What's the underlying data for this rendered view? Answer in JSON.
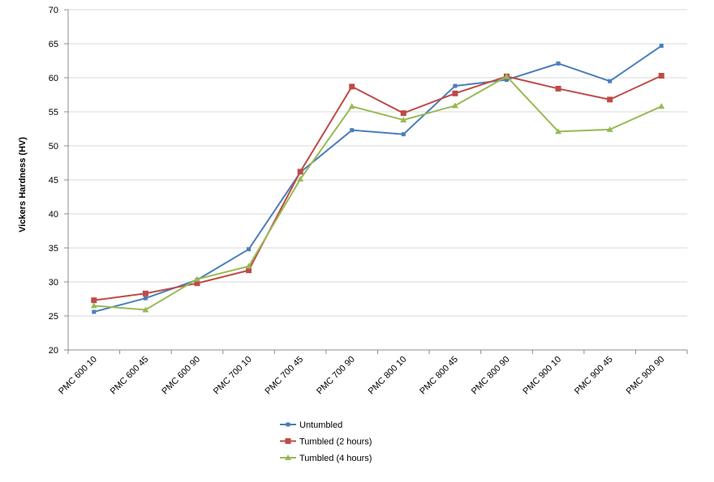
{
  "chart_data": {
    "type": "line",
    "ylabel": "Vickers Hardness (HV)",
    "xlabel": "",
    "title": "",
    "ylim": [
      20,
      70
    ],
    "yticks": [
      20,
      25,
      30,
      35,
      40,
      45,
      50,
      55,
      60,
      65,
      70
    ],
    "grid": "horizontal",
    "legend_position": "bottom",
    "categories": [
      "PMC 600 10",
      "PMC 600 45",
      "PMC 600 90",
      "PMC 700 10",
      "PMC 700 45",
      "PMC 700 90",
      "PMC 800 10",
      "PMC 800 45",
      "PMC 800 90",
      "PMC 900 10",
      "PMC 900 45",
      "PMC 900 90"
    ],
    "series": [
      {
        "name": "Untumbled",
        "color": "#4a7ebb",
        "marker": "square-small",
        "values": [
          25.6,
          27.6,
          30.3,
          34.8,
          46.1,
          52.3,
          51.7,
          58.8,
          59.7,
          62.1,
          59.5,
          64.7
        ]
      },
      {
        "name": "Tumbled (2 hours)",
        "color": "#be4b48",
        "marker": "square",
        "values": [
          27.3,
          28.3,
          29.8,
          31.7,
          46.2,
          58.7,
          54.8,
          57.7,
          60.2,
          58.4,
          56.8,
          60.3
        ]
      },
      {
        "name": "Tumbled (4 hours)",
        "color": "#98b954",
        "marker": "triangle",
        "values": [
          26.5,
          25.9,
          30.4,
          32.3,
          45.1,
          55.8,
          53.8,
          55.9,
          60.2,
          52.1,
          52.4,
          55.8
        ]
      }
    ]
  }
}
